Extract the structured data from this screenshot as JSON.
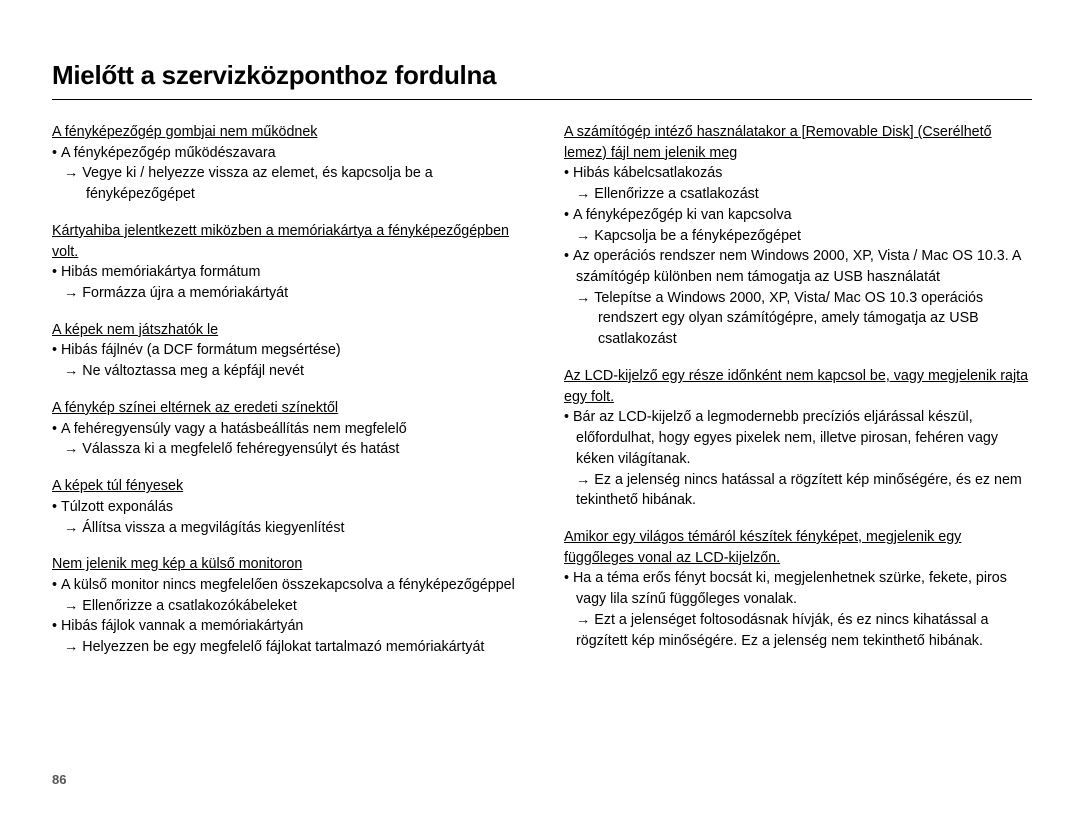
{
  "title": "Mielőtt a szervizközponthoz fordulna",
  "page_number": "86",
  "left": {
    "s1": {
      "t": "A fényképezőgép gombjai nem működnek",
      "b1": "A fényképezőgép működészavara",
      "a1": "Vegye ki / helyezze vissza az elemet, és kapcsolja be a fényképezőgépet"
    },
    "s2": {
      "t": "Kártyahiba jelentkezett miközben a memóriakártya a fényképezőgépben volt.",
      "b1": "Hibás memóriakártya formátum",
      "a1": "Formázza újra a memóriakártyát"
    },
    "s3": {
      "t": "A képek nem játszhatók le",
      "b1": "Hibás fájlnév (a DCF formátum megsértése)",
      "a1": "Ne változtassa meg a képfájl nevét"
    },
    "s4": {
      "t": "A fénykép színei eltérnek az eredeti színektől",
      "b1": "A fehéregyensúly vagy a hatásbeállítás nem megfelelő",
      "a1": "Válassza ki a megfelelő fehéregyensúlyt és hatást"
    },
    "s5": {
      "t": "A képek túl fényesek",
      "b1": "Túlzott exponálás",
      "a1": "Állítsa vissza a megvilágítás kiegyenlítést"
    },
    "s6": {
      "t": "Nem jelenik meg kép a külső monitoron",
      "b1": "A külső monitor nincs megfelelően összekapcsolva a fényképezőgéppel",
      "a1": "Ellenőrizze a csatlakozókábeleket",
      "b2": "Hibás fájlok vannak a memóriakártyán",
      "a2": "Helyezzen be egy megfelelő fájlokat tartalmazó memóriakártyát"
    }
  },
  "right": {
    "s1": {
      "t": "A számítógép intéző használatakor a [Removable Disk] (Cserélhető lemez) fájl nem jelenik meg",
      "b1": "Hibás kábelcsatlakozás",
      "a1": "Ellenőrizze a csatlakozást",
      "b2": "A fényképezőgép ki van kapcsolva",
      "a2": "Kapcsolja be a fényképezőgépet",
      "b3": "Az operációs rendszer nem Windows 2000, XP, Vista / Mac OS 10.3. A számítógép különben nem támogatja az USB használatát",
      "a3": "Telepítse a Windows 2000, XP, Vista/ Mac OS 10.3 operációs rendszert egy olyan számítógépre, amely támogatja az USB csatlakozást"
    },
    "s2": {
      "t": "Az LCD-kijelző egy része időnként nem kapcsol be, vagy megjelenik rajta egy folt.",
      "b1": "Bár az LCD-kijelző a legmodernebb precíziós eljárással készül, előfordulhat, hogy egyes pixelek nem, illetve pirosan, fehéren vagy kéken világítanak.",
      "a1": "Ez a jelenség nincs hatással a rögzített kép minőségére, és ez nem tekinthető hibának."
    },
    "s3": {
      "t": "Amikor egy világos témáról készítek fényképet, megjelenik egy függőleges vonal az LCD-kijelzőn.",
      "b1": "Ha a téma erős fényt bocsát ki, megjelenhetnek szürke, fekete, piros vagy lila színű függőleges vonalak.",
      "a1": "Ezt a jelenséget foltosodásnak hívják, és ez nincs kihatással a rögzített kép minőségére. Ez a jelenség nem tekinthető hibának."
    }
  }
}
